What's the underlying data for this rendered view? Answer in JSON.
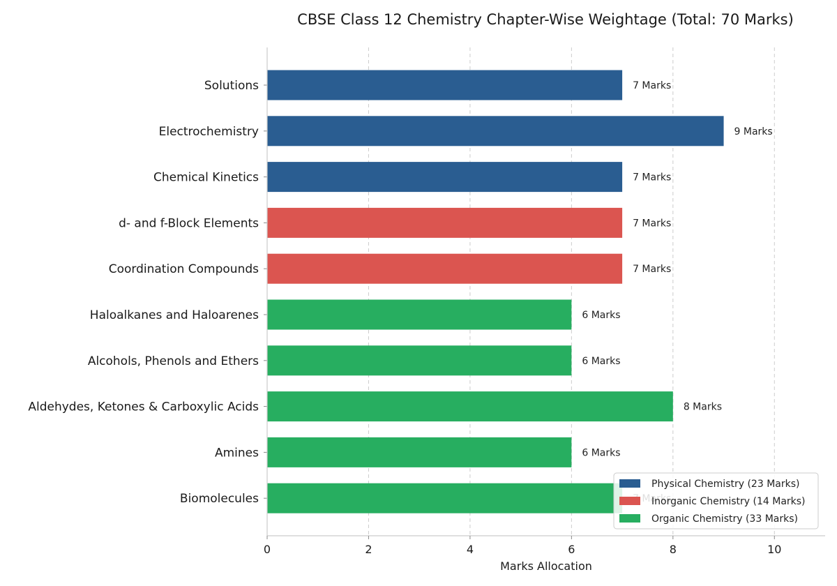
{
  "chart_data": {
    "type": "bar",
    "orientation": "horizontal",
    "title": "CBSE Class 12 Chemistry Chapter-Wise Weightage (Total: 70 Marks)",
    "xlabel": "Marks Allocation",
    "ylabel": "",
    "xlim": [
      0,
      11
    ],
    "xticks": [
      0,
      2,
      4,
      6,
      8,
      10
    ],
    "grid": "x-dashed",
    "legend_position": "lower-right",
    "categories": [
      "Solutions",
      "Electrochemistry",
      "Chemical Kinetics",
      "d- and f-Block Elements",
      "Coordination Compounds",
      "Haloalkanes and Haloarenes",
      "Alcohols, Phenols and Ethers",
      "Aldehydes, Ketones & Carboxylic Acids",
      "Amines",
      "Biomolecules"
    ],
    "values": [
      7,
      9,
      7,
      7,
      7,
      6,
      6,
      8,
      6,
      7
    ],
    "groups": [
      0,
      0,
      0,
      1,
      1,
      2,
      2,
      2,
      2,
      2
    ],
    "data_labels": [
      "7 Marks",
      "9 Marks",
      "7 Marks",
      "7 Marks",
      "7 Marks",
      "6 Marks",
      "6 Marks",
      "8 Marks",
      "6 Marks",
      "7 Marks"
    ],
    "legend": [
      {
        "name": "Physical Chemistry (23 Marks)",
        "color": "#2a5d91"
      },
      {
        "name": "Inorganic Chemistry (14 Marks)",
        "color": "#db5550"
      },
      {
        "name": "Organic Chemistry (33 Marks)",
        "color": "#27ae60"
      }
    ]
  }
}
